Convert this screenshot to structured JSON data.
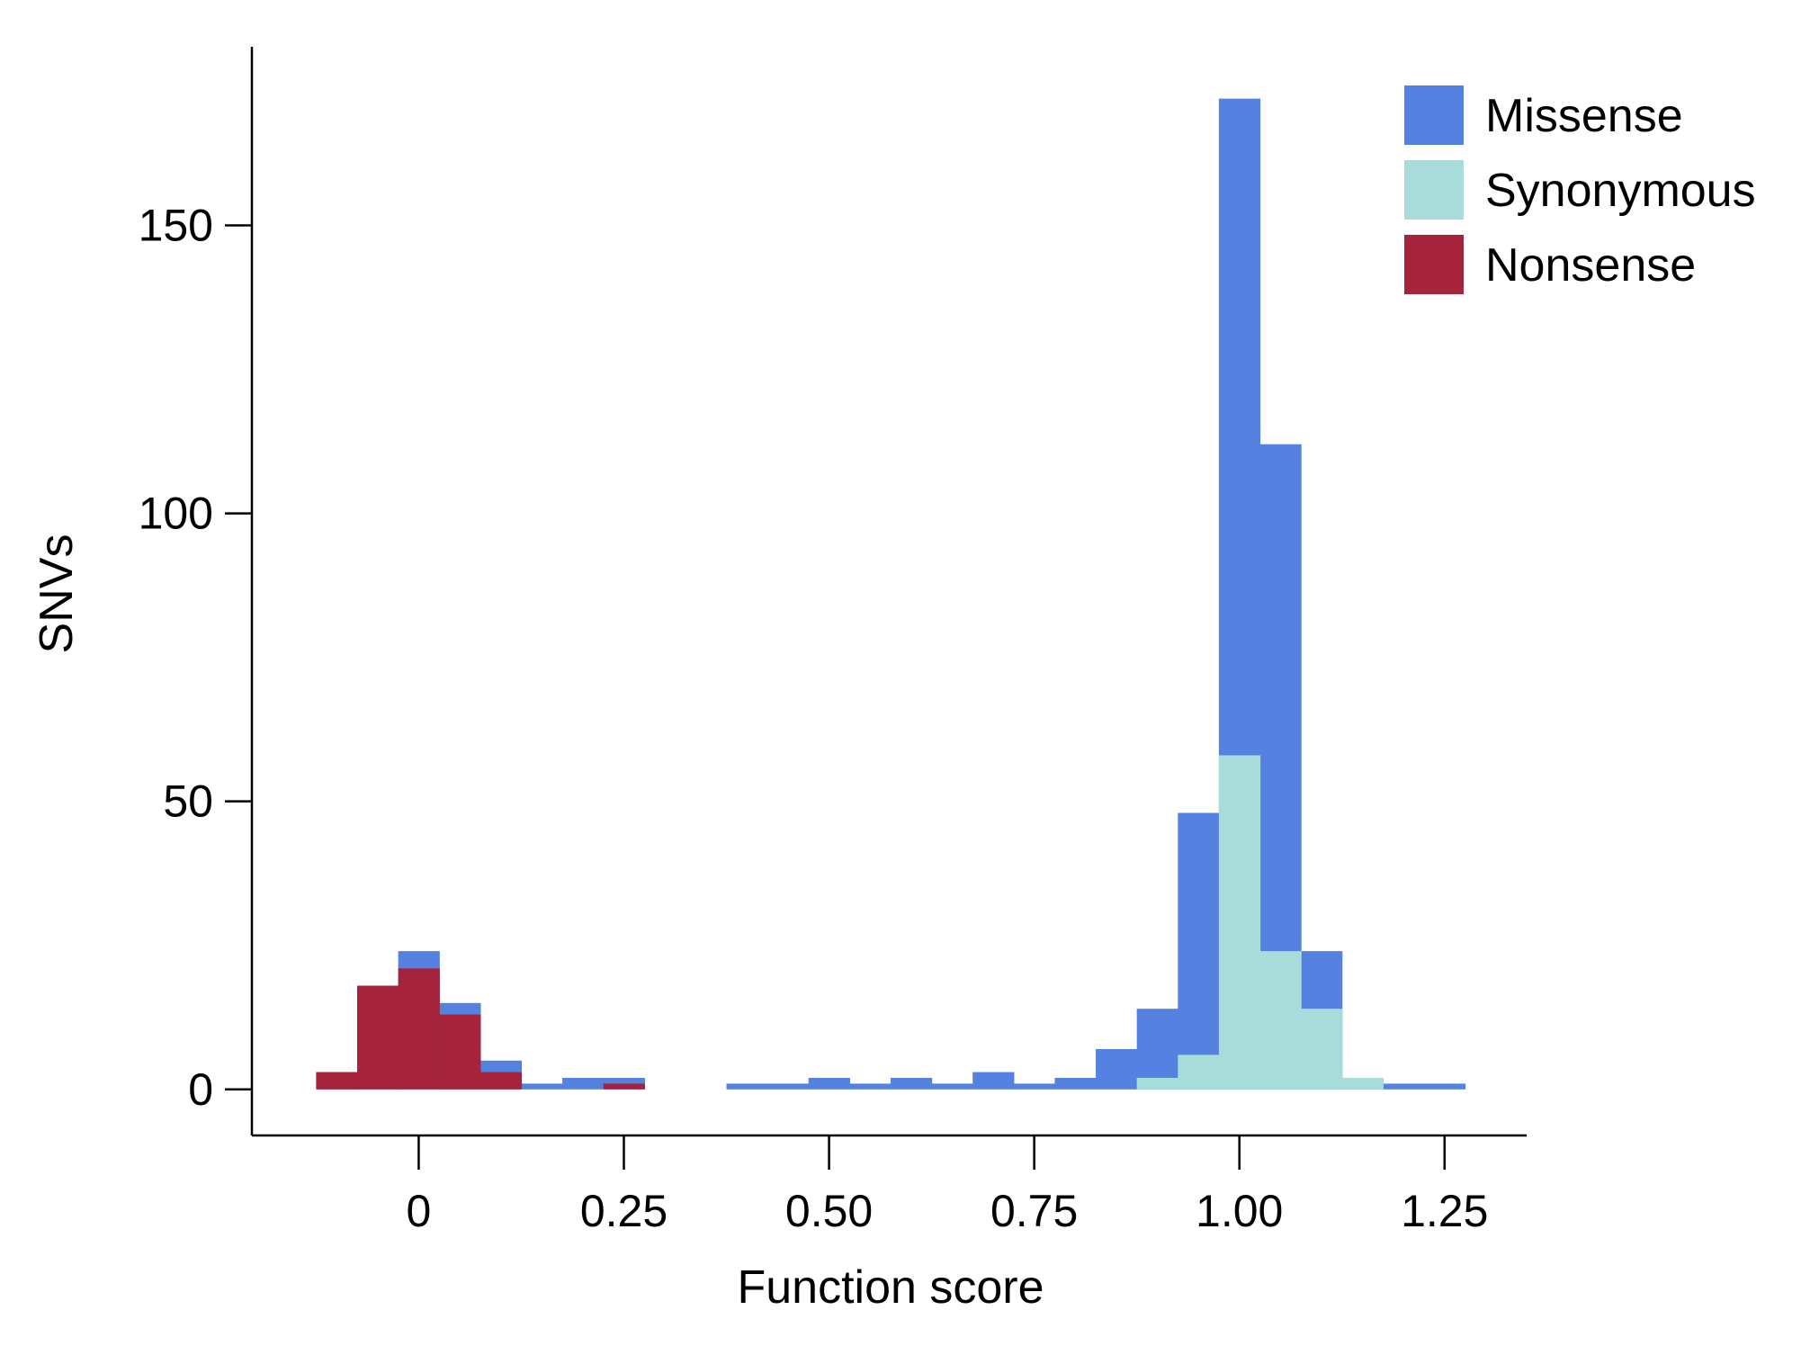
{
  "chart_data": {
    "type": "bar",
    "stacking": "overlaid",
    "bin_width": 0.05,
    "xlabel": "Function score",
    "ylabel": "SNVs",
    "xlim": [
      -0.2,
      1.35
    ],
    "ylim": [
      -8,
      181
    ],
    "xticks": [
      {
        "value": 0,
        "label": "0"
      },
      {
        "value": 0.25,
        "label": "0.25"
      },
      {
        "value": 0.5,
        "label": "0.50"
      },
      {
        "value": 0.75,
        "label": "0.75"
      },
      {
        "value": 1.0,
        "label": "1.00"
      },
      {
        "value": 1.25,
        "label": "1.25"
      }
    ],
    "yticks": [
      {
        "value": 0,
        "label": "0"
      },
      {
        "value": 50,
        "label": "50"
      },
      {
        "value": 100,
        "label": "100"
      },
      {
        "value": 150,
        "label": "150"
      }
    ],
    "grid": false,
    "legend": {
      "position": "top-right"
    },
    "series": [
      {
        "name": "Missense",
        "color": "#5581e0",
        "bins": [
          {
            "x0": -0.125,
            "x1": -0.075,
            "count": 3
          },
          {
            "x0": -0.075,
            "x1": -0.025,
            "count": 18
          },
          {
            "x0": -0.025,
            "x1": 0.025,
            "count": 24
          },
          {
            "x0": 0.025,
            "x1": 0.075,
            "count": 15
          },
          {
            "x0": 0.075,
            "x1": 0.125,
            "count": 5
          },
          {
            "x0": 0.125,
            "x1": 0.175,
            "count": 1
          },
          {
            "x0": 0.175,
            "x1": 0.225,
            "count": 2
          },
          {
            "x0": 0.225,
            "x1": 0.275,
            "count": 2
          },
          {
            "x0": 0.375,
            "x1": 0.425,
            "count": 1
          },
          {
            "x0": 0.425,
            "x1": 0.475,
            "count": 1
          },
          {
            "x0": 0.475,
            "x1": 0.525,
            "count": 2
          },
          {
            "x0": 0.525,
            "x1": 0.575,
            "count": 1
          },
          {
            "x0": 0.575,
            "x1": 0.625,
            "count": 2
          },
          {
            "x0": 0.625,
            "x1": 0.675,
            "count": 1
          },
          {
            "x0": 0.675,
            "x1": 0.725,
            "count": 3
          },
          {
            "x0": 0.725,
            "x1": 0.775,
            "count": 1
          },
          {
            "x0": 0.775,
            "x1": 0.825,
            "count": 2
          },
          {
            "x0": 0.825,
            "x1": 0.875,
            "count": 7
          },
          {
            "x0": 0.875,
            "x1": 0.925,
            "count": 14
          },
          {
            "x0": 0.925,
            "x1": 0.975,
            "count": 48
          },
          {
            "x0": 0.975,
            "x1": 1.025,
            "count": 172
          },
          {
            "x0": 1.025,
            "x1": 1.075,
            "count": 112
          },
          {
            "x0": 1.075,
            "x1": 1.125,
            "count": 24
          },
          {
            "x0": 1.125,
            "x1": 1.175,
            "count": 2
          },
          {
            "x0": 1.175,
            "x1": 1.225,
            "count": 1
          },
          {
            "x0": 1.225,
            "x1": 1.275,
            "count": 1
          }
        ]
      },
      {
        "name": "Synonymous",
        "color": "#a8dcdb",
        "bins": [
          {
            "x0": 0.875,
            "x1": 0.925,
            "count": 2
          },
          {
            "x0": 0.925,
            "x1": 0.975,
            "count": 6
          },
          {
            "x0": 0.975,
            "x1": 1.025,
            "count": 58
          },
          {
            "x0": 1.025,
            "x1": 1.075,
            "count": 24
          },
          {
            "x0": 1.075,
            "x1": 1.125,
            "count": 14
          },
          {
            "x0": 1.125,
            "x1": 1.175,
            "count": 2
          }
        ]
      },
      {
        "name": "Nonsense",
        "color": "#a5243b",
        "bins": [
          {
            "x0": -0.125,
            "x1": -0.075,
            "count": 3
          },
          {
            "x0": -0.075,
            "x1": -0.025,
            "count": 18
          },
          {
            "x0": -0.025,
            "x1": 0.025,
            "count": 21
          },
          {
            "x0": 0.025,
            "x1": 0.075,
            "count": 13
          },
          {
            "x0": 0.075,
            "x1": 0.125,
            "count": 3
          },
          {
            "x0": 0.225,
            "x1": 0.275,
            "count": 1
          }
        ]
      }
    ]
  }
}
